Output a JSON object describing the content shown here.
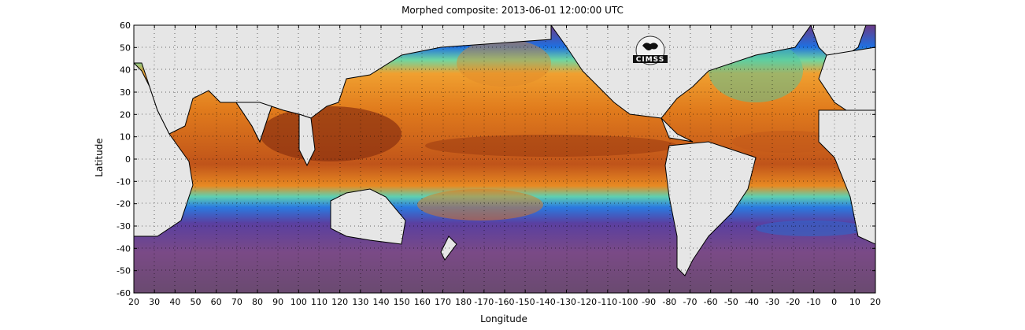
{
  "title": "Morphed composite: 2013-06-01 12:00:00 UTC",
  "axes": {
    "xlabel": "Longitude",
    "ylabel": "Latitude",
    "xticks": [
      "20",
      "30",
      "40",
      "50",
      "60",
      "70",
      "80",
      "90",
      "100",
      "110",
      "120",
      "130",
      "140",
      "150",
      "160",
      "170",
      "180",
      "-170",
      "-160",
      "-150",
      "-140",
      "-130",
      "-120",
      "-110",
      "-100",
      "-90",
      "-80",
      "-70",
      "-60",
      "-50",
      "-40",
      "-30",
      "-20",
      "-10",
      "0",
      "10",
      "20"
    ],
    "yticks": [
      "60",
      "50",
      "40",
      "30",
      "20",
      "10",
      "0",
      "-10",
      "-20",
      "-30",
      "-40",
      "-50",
      "-60"
    ],
    "xlim": [
      20,
      380
    ],
    "ylim": [
      -60,
      60
    ],
    "grid": true
  },
  "logo": {
    "text": "CIMSS"
  },
  "colors": {
    "land": "#e6e6e6",
    "ocean_dry": "#7a3c7e",
    "ocean_blue": "#1e7fe6",
    "ocean_green": "#8ee070",
    "ocean_orange": "#e8821e",
    "ocean_wet": "#7a2a0c"
  }
}
